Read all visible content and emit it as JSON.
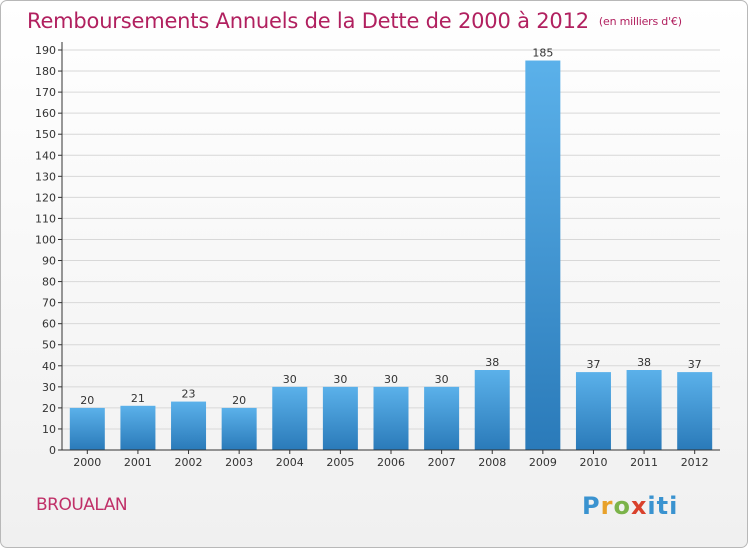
{
  "title": "Remboursements Annuels de la Dette de 2000 à 2012",
  "subtitle": "(en milliers d'€)",
  "commune": "BROUALAN",
  "logo_text": "Proxiti",
  "colors": {
    "title": "#b1205f",
    "bar_top": "#5bb1ea",
    "bar_bottom": "#2a7ab9",
    "grid": "#d8d8d8",
    "axis": "#333333"
  },
  "chart_data": {
    "type": "bar",
    "title": "Remboursements Annuels de la Dette de 2000 à 2012",
    "subtitle": "(en milliers d'€)",
    "categories": [
      "2000",
      "2001",
      "2002",
      "2003",
      "2004",
      "2005",
      "2006",
      "2007",
      "2008",
      "2009",
      "2010",
      "2011",
      "2012"
    ],
    "values": [
      20,
      21,
      23,
      20,
      30,
      30,
      30,
      30,
      38,
      185,
      37,
      38,
      37
    ],
    "data_labels": [
      "20",
      "21",
      "23",
      "20",
      "30",
      "30",
      "30",
      "30",
      "38",
      "185",
      "37",
      "38",
      "37"
    ],
    "yticks": [
      "0",
      "10",
      "20",
      "30",
      "40",
      "50",
      "60",
      "70",
      "80",
      "90",
      "100",
      "110",
      "120",
      "130",
      "140",
      "150",
      "160",
      "170",
      "180",
      "190"
    ],
    "ylim": [
      0,
      190
    ],
    "xlabel": "",
    "ylabel": "",
    "grid": true,
    "legend": "none"
  }
}
